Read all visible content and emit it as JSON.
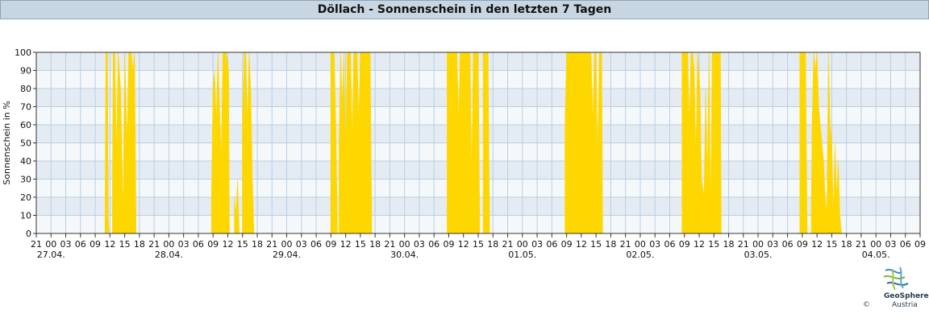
{
  "header": {
    "title": "Döllach - Sonnenschein in den letzten 7 Tagen"
  },
  "chart_data": {
    "type": "area",
    "title": "Döllach - Sonnenschein in den letzten 7 Tagen",
    "xlabel": "",
    "ylabel": "Sonnenschein in %",
    "ylim": [
      0,
      100
    ],
    "y_ticks": [
      0,
      10,
      20,
      30,
      40,
      50,
      60,
      70,
      80,
      90,
      100
    ],
    "x_hour_ticks": [
      "21",
      "00",
      "03",
      "06",
      "09",
      "12",
      "15",
      "18",
      "21",
      "00",
      "03",
      "06",
      "09",
      "12",
      "15",
      "18",
      "21",
      "00",
      "03",
      "06",
      "09",
      "12",
      "15",
      "18",
      "21",
      "00",
      "03",
      "06",
      "09",
      "12",
      "15",
      "18",
      "21",
      "00",
      "03",
      "06",
      "09",
      "12",
      "15",
      "18",
      "21",
      "00",
      "03",
      "06",
      "09",
      "12",
      "15",
      "18",
      "21",
      "00",
      "03",
      "06",
      "09",
      "12",
      "15",
      "18",
      "21",
      "00",
      "03",
      "06",
      "09"
    ],
    "x_date_labels": [
      "27.04.",
      "28.04.",
      "29.04.",
      "30.04.",
      "01.05.",
      "02.05.",
      "03.05.",
      "04.05."
    ],
    "x_range_hours_since_start": [
      0,
      180
    ],
    "grid": true,
    "series_color": "#ffd700",
    "series": [
      {
        "name": "",
        "points": [
          [
            "27.04. 11:00",
            0
          ],
          [
            "27.04. 11:10",
            100
          ],
          [
            "27.04. 11:30",
            100
          ],
          [
            "27.04. 11:40",
            10
          ],
          [
            "27.04. 11:50",
            0
          ],
          [
            "27.04. 12:30",
            30
          ],
          [
            "27.04. 12:40",
            100
          ],
          [
            "27.04. 13:00",
            100
          ],
          [
            "27.04. 13:20",
            40
          ],
          [
            "27.04. 13:40",
            100
          ],
          [
            "27.04. 14:10",
            80
          ],
          [
            "27.04. 14:40",
            10
          ],
          [
            "27.04. 15:00",
            100
          ],
          [
            "27.04. 15:30",
            50
          ],
          [
            "27.04. 15:50",
            100
          ],
          [
            "27.04. 16:20",
            100
          ],
          [
            "27.04. 16:40",
            90
          ],
          [
            "27.04. 17:00",
            100
          ],
          [
            "27.04. 17:20",
            0
          ],
          [
            "28.04. 08:30",
            0
          ],
          [
            "28.04. 08:40",
            20
          ],
          [
            "28.04. 09:00",
            80
          ],
          [
            "28.04. 09:20",
            90
          ],
          [
            "28.04. 09:40",
            60
          ],
          [
            "28.04. 10:00",
            100
          ],
          [
            "28.04. 10:20",
            70
          ],
          [
            "28.04. 10:40",
            40
          ],
          [
            "28.04. 11:00",
            100
          ],
          [
            "28.04. 11:20",
            100
          ],
          [
            "28.04. 11:40",
            100
          ],
          [
            "28.04. 12:10",
            90
          ],
          [
            "28.04. 12:20",
            0
          ],
          [
            "28.04. 13:10",
            0
          ],
          [
            "28.04. 13:20",
            20
          ],
          [
            "28.04. 13:40",
            10
          ],
          [
            "28.04. 14:00",
            30
          ],
          [
            "28.04. 14:20",
            0
          ],
          [
            "28.04. 14:40",
            0
          ],
          [
            "28.04. 15:00",
            60
          ],
          [
            "28.04. 15:20",
            100
          ],
          [
            "28.04. 15:40",
            100
          ],
          [
            "28.04. 16:00",
            60
          ],
          [
            "28.04. 16:20",
            100
          ],
          [
            "28.04. 16:40",
            80
          ],
          [
            "28.04. 17:00",
            30
          ],
          [
            "28.04. 17:20",
            0
          ],
          [
            "29.04. 08:50",
            0
          ],
          [
            "29.04. 09:00",
            100
          ],
          [
            "29.04. 09:40",
            100
          ],
          [
            "29.04. 10:00",
            60
          ],
          [
            "29.04. 10:20",
            0
          ],
          [
            "29.04. 10:40",
            50
          ],
          [
            "29.04. 11:00",
            100
          ],
          [
            "29.04. 11:20",
            70
          ],
          [
            "29.04. 11:40",
            100
          ],
          [
            "29.04. 12:00",
            40
          ],
          [
            "29.04. 12:20",
            100
          ],
          [
            "29.04. 13:00",
            100
          ],
          [
            "29.04. 13:20",
            50
          ],
          [
            "29.04. 13:40",
            100
          ],
          [
            "29.04. 14:20",
            100
          ],
          [
            "29.04. 14:40",
            60
          ],
          [
            "29.04. 15:00",
            100
          ],
          [
            "29.04. 16:00",
            100
          ],
          [
            "29.04. 16:20",
            100
          ],
          [
            "29.04. 17:00",
            100
          ],
          [
            "29.04. 17:20",
            0
          ],
          [
            "30.04. 08:30",
            0
          ],
          [
            "30.04. 08:40",
            100
          ],
          [
            "30.04. 10:40",
            100
          ],
          [
            "30.04. 11:00",
            60
          ],
          [
            "30.04. 11:20",
            100
          ],
          [
            "30.04. 13:20",
            100
          ],
          [
            "30.04. 13:40",
            30
          ],
          [
            "30.04. 14:00",
            100
          ],
          [
            "30.04. 15:00",
            100
          ],
          [
            "30.04. 15:20",
            0
          ],
          [
            "30.04. 15:40",
            0
          ],
          [
            "30.04. 16:00",
            100
          ],
          [
            "30.04. 17:00",
            100
          ],
          [
            "30.04. 17:20",
            0
          ],
          [
            "01.05. 08:30",
            0
          ],
          [
            "01.05. 08:40",
            60
          ],
          [
            "01.05. 09:00",
            100
          ],
          [
            "01.05. 14:00",
            100
          ],
          [
            "01.05. 14:20",
            60
          ],
          [
            "01.05. 14:40",
            100
          ],
          [
            "01.05. 15:00",
            100
          ],
          [
            "01.05. 15:20",
            40
          ],
          [
            "01.05. 15:40",
            100
          ],
          [
            "01.05. 16:10",
            100
          ],
          [
            "01.05. 16:20",
            0
          ],
          [
            "02.05. 08:20",
            0
          ],
          [
            "02.05. 08:30",
            100
          ],
          [
            "02.05. 09:40",
            100
          ],
          [
            "02.05. 10:00",
            60
          ],
          [
            "02.05. 10:20",
            100
          ],
          [
            "02.05. 10:40",
            100
          ],
          [
            "02.05. 11:00",
            90
          ],
          [
            "02.05. 11:20",
            40
          ],
          [
            "02.05. 11:40",
            100
          ],
          [
            "02.05. 12:10",
            80
          ],
          [
            "02.05. 12:30",
            30
          ],
          [
            "02.05. 13:00",
            20
          ],
          [
            "02.05. 13:20",
            80
          ],
          [
            "02.05. 13:40",
            30
          ],
          [
            "02.05. 14:00",
            100
          ],
          [
            "02.05. 14:20",
            10
          ],
          [
            "02.05. 14:40",
            100
          ],
          [
            "02.05. 16:20",
            100
          ],
          [
            "02.05. 16:30",
            0
          ],
          [
            "03.05. 08:20",
            0
          ],
          [
            "03.05. 08:30",
            100
          ],
          [
            "03.05. 09:40",
            100
          ],
          [
            "03.05. 10:00",
            0
          ],
          [
            "03.05. 10:40",
            0
          ],
          [
            "03.05. 10:50",
            10
          ],
          [
            "03.05. 11:00",
            60
          ],
          [
            "03.05. 11:20",
            100
          ],
          [
            "03.05. 11:40",
            90
          ],
          [
            "03.05. 12:00",
            100
          ],
          [
            "03.05. 12:20",
            70
          ],
          [
            "03.05. 12:40",
            60
          ],
          [
            "03.05. 13:00",
            50
          ],
          [
            "03.05. 13:20",
            40
          ],
          [
            "03.05. 13:40",
            20
          ],
          [
            "03.05. 14:00",
            10
          ],
          [
            "03.05. 14:20",
            100
          ],
          [
            "03.05. 14:40",
            60
          ],
          [
            "03.05. 15:00",
            50
          ],
          [
            "03.05. 15:20",
            10
          ],
          [
            "03.05. 15:40",
            50
          ],
          [
            "03.05. 16:00",
            20
          ],
          [
            "03.05. 16:20",
            40
          ],
          [
            "03.05. 16:40",
            10
          ],
          [
            "03.05. 17:00",
            0
          ]
        ]
      }
    ]
  },
  "logo": {
    "name": "GeoSphere",
    "sub": "Austria",
    "copyright": "©"
  }
}
